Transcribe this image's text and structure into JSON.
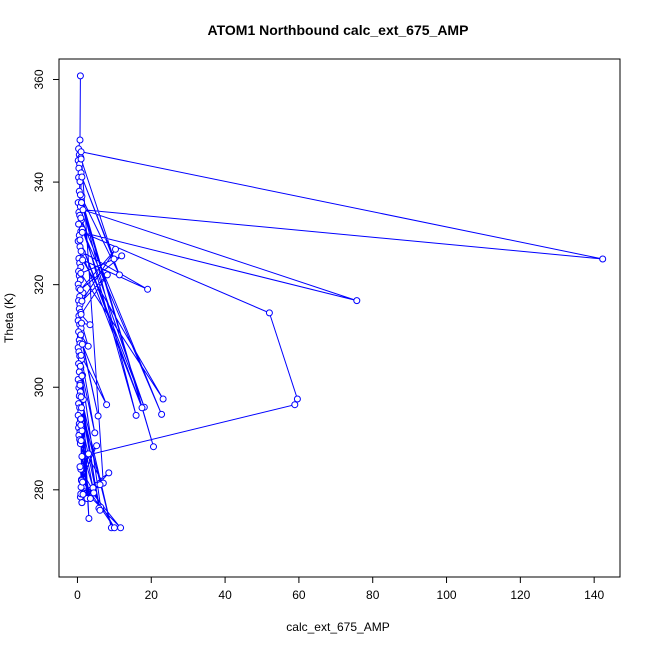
{
  "chart_data": {
    "type": "line",
    "title": "ATOM1 Northbound calc_ext_675_AMP",
    "xlabel": "calc_ext_675_AMP",
    "ylabel": "Theta (K)",
    "xlim": [
      -5,
      147
    ],
    "ylim": [
      263,
      364
    ],
    "xticks": [
      0,
      20,
      40,
      60,
      80,
      100,
      120,
      140
    ],
    "yticks": [
      280,
      300,
      320,
      340,
      360
    ],
    "grid": false,
    "legend": "none",
    "colors": {
      "series": "#0000ff",
      "axis": "#000000",
      "background": "#ffffff"
    },
    "markers": "open-circle",
    "series": [
      {
        "x": [
          0.8,
          0.7,
          0.3,
          0.5,
          0.9,
          0.2,
          0.6,
          0.4,
          1.0,
          0.3,
          0.7,
          0.5,
          1.2,
          0.2,
          0.8,
          0.4,
          0.6,
          1.1,
          0.3,
          0.9,
          0.5,
          0.2,
          0.7,
          1.3,
          0.4,
          0.6,
          0.9,
          0.3,
          0.5,
          0.8,
          0.2,
          0.4,
          1.5,
          0.6,
          0.3,
          0.7,
          0.5,
          0.9,
          0.4,
          0.2,
          0.6,
          1.0,
          0.3,
          0.8,
          0.5,
          0.7,
          0.2,
          0.4,
          0.6,
          1.1,
          0.3,
          0.9,
          0.5,
          1.4,
          0.2,
          0.7,
          0.4,
          0.8,
          0.5,
          1.6,
          0.3,
          0.6,
          0.9,
          0.2,
          0.8,
          0.5,
          0.3,
          0.7,
          0.4,
          0.6,
          1.0,
          9.9,
          1.2,
          11.4,
          0.8,
          20.6,
          1.1,
          15.9,
          0.9,
          22.8,
          1.3,
          18.1,
          0.7,
          17.5,
          1.0,
          19.0,
          1.4,
          23.2,
          0.9,
          12.0,
          0.8,
          10.3,
          1.2,
          8.1,
          1.0,
          3.4,
          1.1,
          2.9,
          0.9,
          5.6,
          1.3,
          7.9,
          1.0,
          4.7,
          0.8,
          6.3,
          1.2,
          3.1,
          0.7,
          5.8,
          1.0,
          9.2,
          1.1,
          6.1,
          0.9,
          2.6,
          1.2,
          4.2,
          0.8,
          7.0,
          1.0,
          142.3,
          1.5,
          75.7,
          1.3,
          52.0,
          59.6,
          58.9,
          1.2,
          3.5,
          0.9,
          10.0,
          1.1,
          11.7,
          1.0,
          4.4,
          0.8,
          6.1,
          1.2,
          8.5,
          0.9,
          3.0,
          1.1,
          5.2,
          0.7,
          1.5,
          1.0,
          1.2,
          0.9,
          1.4
        ],
        "y": [
          360.7,
          348.2,
          346.5,
          345.3,
          344.8,
          344.2,
          343.5,
          342.7,
          341.8,
          340.9,
          340.1,
          338.2,
          337.2,
          336.0,
          335.2,
          334.1,
          333.5,
          332.6,
          331.8,
          330.4,
          329.6,
          328.5,
          327.4,
          326.3,
          325.1,
          324.2,
          323.4,
          322.6,
          321.7,
          320.9,
          320.1,
          319.3,
          318.4,
          317.7,
          316.9,
          316.1,
          315.3,
          314.6,
          313.9,
          313.0,
          312.2,
          311.5,
          310.8,
          310.0,
          309.2,
          308.5,
          307.7,
          306.9,
          306.1,
          305.4,
          304.6,
          303.8,
          303.0,
          302.3,
          301.5,
          300.7,
          299.9,
          299.1,
          298.3,
          297.6,
          296.8,
          296.0,
          295.2,
          294.5,
          293.7,
          292.9,
          292.1,
          291.3,
          290.6,
          289.8,
          344.5,
          325.0,
          341.0,
          321.9,
          337.5,
          288.4,
          336.0,
          294.5,
          333.0,
          294.7,
          330.8,
          296.1,
          328.7,
          296.0,
          326.5,
          319.1,
          324.8,
          297.7,
          322.2,
          325.6,
          319.0,
          326.9,
          316.8,
          321.9,
          314.2,
          312.2,
          312.5,
          308.0,
          310.2,
          294.4,
          308.4,
          296.6,
          306.2,
          291.1,
          304.1,
          276.6,
          302.2,
          274.4,
          300.4,
          276.4,
          298.1,
          272.6,
          296.0,
          276.0,
          293.8,
          278.3,
          291.5,
          280.4,
          289.0,
          281.3,
          345.9,
          325.0,
          334.6,
          316.9,
          330.2,
          314.5,
          297.7,
          296.6,
          286.5,
          278.3,
          284.0,
          272.6,
          282.0,
          272.6,
          280.5,
          279.4,
          278.6,
          281.0,
          277.5,
          283.3,
          279.2,
          287.0,
          281.8,
          288.6,
          284.5,
          279.1,
          289.6,
          277.5,
          292.6,
          281.5
        ]
      }
    ]
  }
}
